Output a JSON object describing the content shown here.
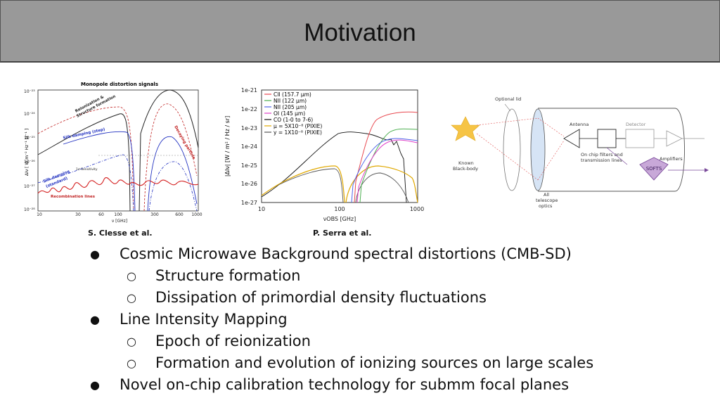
{
  "slide": {
    "title": "Motivation"
  },
  "figures": {
    "left": {
      "title": "Monopole distortion signals",
      "y_ticks": [
        "10⁻²³",
        "10⁻²⁴",
        "10⁻²⁵",
        "10⁻²⁶",
        "10⁻²⁷",
        "10⁻²⁸"
      ],
      "x_ticks": [
        "10",
        "30",
        "60",
        "100",
        "300",
        "600",
        "1000"
      ],
      "xlabel": "ν [GHz]",
      "ylabel": "ΔIν [ W m⁻² Hz⁻¹ sr⁻¹ ]",
      "annotations": {
        "reionization": "Reionization &",
        "structure": "Structure formation",
        "silk_step": "Silk damping (step)",
        "decaying": "Decaying particle",
        "silk_standard_1": "Silk damping",
        "silk_standard_2": "(standard)",
        "sensitivity": "1σ Sensitivity",
        "recombination": "Recombination lines"
      },
      "caption": "S. Clesse et al."
    },
    "middle": {
      "y_ticks": [
        "1e-21",
        "1e-22",
        "1e-23",
        "1e-24",
        "1e-25",
        "1e-26",
        "1e-27"
      ],
      "x_ticks": [
        "10",
        "100",
        "1000"
      ],
      "xlabel": "νOBS [GHz]",
      "ylabel": "|ΔIν| [W / m² / Hz / sr]",
      "legend": [
        {
          "label": "CII (157.7 μm)",
          "color": "#e8484f"
        },
        {
          "label": "NII (122 μm)",
          "color": "#4caf50"
        },
        {
          "label": "NII (205 μm)",
          "color": "#4f63e8"
        },
        {
          "label": "OI (145 μm)",
          "color": "#e040c8"
        },
        {
          "label": "CO (1-0 to 7-6)",
          "color": "#111111"
        },
        {
          "label": "μ = 5X10⁻⁸ (PIXIE)",
          "color": "#e0a800"
        },
        {
          "label": "y = 1X10⁻⁸ (PIXIE)",
          "color": "#555555"
        }
      ],
      "caption": "P. Serra et al."
    },
    "right": {
      "optional_lid": "Optional lid",
      "antenna": "Antenna",
      "detector": "Detector",
      "amplifiers": "Amplifiers",
      "filters_1": "On chip filters and",
      "filters_2": "transmission lines",
      "softs": "SOFTS",
      "known_1": "Known",
      "known_2": "Black-body",
      "optics_1": "All",
      "optics_2": "telescope",
      "optics_3": "optics"
    }
  },
  "bullets": [
    {
      "level": 1,
      "marker": "●",
      "text": "Cosmic Microwave Background spectral distortions (CMB-SD)"
    },
    {
      "level": 2,
      "marker": "○",
      "text": "Structure formation"
    },
    {
      "level": 2,
      "marker": "○",
      "text": "Dissipation of primordial density fluctuations"
    },
    {
      "level": 1,
      "marker": "●",
      "text": "Line Intensity Mapping"
    },
    {
      "level": 2,
      "marker": "○",
      "text": "Epoch of reionization"
    },
    {
      "level": 2,
      "marker": "○",
      "text": "Formation and evolution of ionizing sources on large scales"
    },
    {
      "level": 1,
      "marker": "●",
      "text": "Novel on-chip calibration technology for submm focal planes"
    }
  ]
}
